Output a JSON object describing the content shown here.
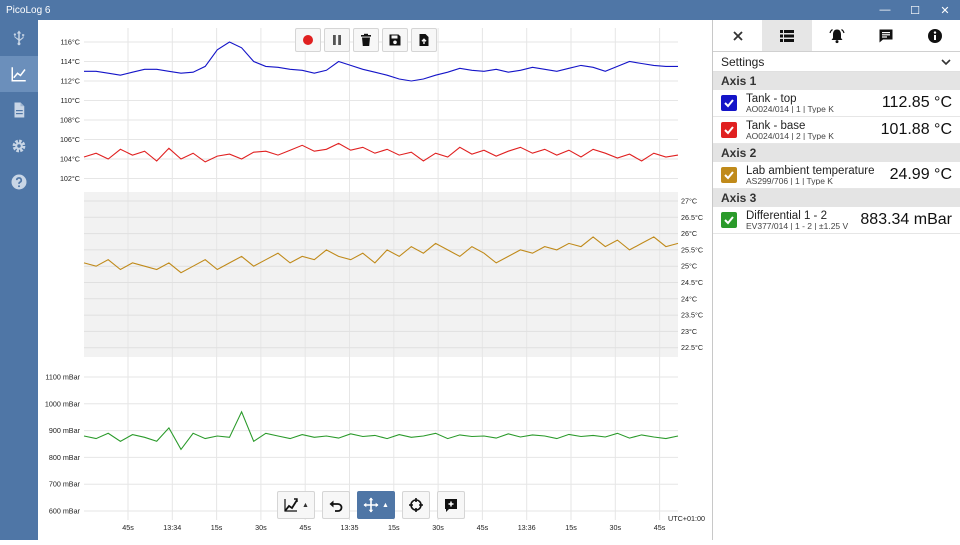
{
  "window": {
    "title": "PicoLog 6",
    "minimize": "—",
    "maximize": "☐",
    "close": "✕"
  },
  "sidebar": {
    "items": [
      {
        "name": "usb-icon",
        "active": false
      },
      {
        "name": "graph-icon",
        "active": true
      },
      {
        "name": "document-icon",
        "active": false
      },
      {
        "name": "gear-icon",
        "active": false
      },
      {
        "name": "help-icon",
        "active": false
      }
    ]
  },
  "toolbar_top": [
    "record-icon",
    "pause-icon",
    "trash-icon",
    "save-icon",
    "export-icon"
  ],
  "toolbar_bottom": [
    "auto-scale-icon",
    "undo-icon",
    "move-icon",
    "crosshair-icon",
    "add-annotation-icon"
  ],
  "panel": {
    "tabs": [
      "close-icon",
      "table-icon",
      "alarm-icon",
      "notes-icon",
      "info-icon"
    ],
    "settings_label": "Settings",
    "axes": [
      {
        "label": "Axis 1",
        "channels": [
          {
            "name": "Tank - top",
            "sub": "AO024/014 | 1 | Type K",
            "value": "112.85 °C",
            "color": "#1414c8"
          },
          {
            "name": "Tank - base",
            "sub": "AO024/014 | 2 | Type K",
            "value": "101.88 °C",
            "color": "#e02020"
          }
        ]
      },
      {
        "label": "Axis 2",
        "channels": [
          {
            "name": "Lab ambient temperature",
            "sub": "AS299/706 | 1 | Type K",
            "value": "24.99 °C",
            "color": "#c08a1a"
          }
        ]
      },
      {
        "label": "Axis 3",
        "channels": [
          {
            "name": "Differential 1 - 2",
            "sub": "EV377/014 | 1 - 2 | ±1.25 V",
            "value": "883.34 mBar",
            "color": "#2a9a2a"
          }
        ]
      }
    ]
  },
  "graph": {
    "timezone": "UTC+01:00",
    "x_ticks": [
      "45s",
      "13:34",
      "15s",
      "30s",
      "45s",
      "13:35",
      "15s",
      "30s",
      "45s",
      "13:36",
      "15s",
      "30s",
      "45s"
    ],
    "axis1_ticks": [
      "116°C",
      "114°C",
      "112°C",
      "110°C",
      "108°C",
      "106°C",
      "104°C",
      "102°C"
    ],
    "axis2_ticks": [
      "27°C",
      "26.5°C",
      "26°C",
      "25.5°C",
      "25°C",
      "24.5°C",
      "24°C",
      "23.5°C",
      "23°C",
      "22.5°C"
    ],
    "axis3_ticks": [
      "1100 mBar",
      "1000 mBar",
      "900 mBar",
      "800 mBar",
      "700 mBar",
      "600 mBar"
    ]
  },
  "chart_data": {
    "type": "line",
    "xlabel": "",
    "x_range": [
      "13:33:40",
      "13:36:50"
    ],
    "series": [
      {
        "name": "Tank - top",
        "axis": 1,
        "color": "#1414c8",
        "ylim": [
          101,
          117
        ],
        "values": [
          113,
          113,
          112.8,
          112.6,
          112.9,
          113.2,
          113.2,
          113.0,
          112.8,
          112.9,
          113.5,
          115.2,
          116.0,
          115.4,
          114.0,
          113.5,
          113.4,
          113.2,
          113.1,
          112.8,
          113.1,
          114.0,
          113.6,
          113.2,
          112.9,
          112.6,
          112.2,
          112.0,
          112.2,
          112.6,
          112.9,
          113.3,
          113.1,
          113.0,
          113.2,
          112.9,
          113.1,
          113.4,
          113.2,
          113.0,
          113.3,
          113.6,
          113.4,
          113.0,
          113.5,
          114.0,
          113.8,
          113.6,
          113.5,
          113.5
        ]
      },
      {
        "name": "Tank - base",
        "axis": 1,
        "color": "#e02020",
        "ylim": [
          101,
          117
        ],
        "values": [
          104.2,
          104.6,
          104.0,
          105.0,
          104.4,
          104.8,
          103.8,
          105.1,
          104.0,
          104.6,
          103.7,
          104.3,
          104.5,
          104.0,
          104.7,
          104.8,
          104.4,
          104.9,
          105.4,
          104.8,
          105.0,
          105.6,
          104.9,
          105.2,
          104.6,
          105.0,
          104.4,
          104.7,
          103.8,
          104.6,
          104.2,
          105.2,
          104.5,
          104.9,
          104.3,
          104.8,
          105.2,
          104.6,
          105.0,
          104.4,
          104.9,
          104.2,
          105.0,
          104.6,
          104.1,
          104.5,
          103.8,
          104.6,
          104.2,
          104.4
        ]
      },
      {
        "name": "Lab ambient temperature",
        "axis": 2,
        "color": "#c08a1a",
        "ylim": [
          22.25,
          27.25
        ],
        "values": [
          25.1,
          25.0,
          25.2,
          24.9,
          25.1,
          25.0,
          24.9,
          25.1,
          24.8,
          25.0,
          25.2,
          24.9,
          25.1,
          25.3,
          25.0,
          25.2,
          25.4,
          25.1,
          25.3,
          25.2,
          25.5,
          25.3,
          25.2,
          25.4,
          25.1,
          25.5,
          25.3,
          25.6,
          25.4,
          25.7,
          25.5,
          25.3,
          25.6,
          25.4,
          25.1,
          25.3,
          25.5,
          25.4,
          25.6,
          25.5,
          25.7,
          25.6,
          25.9,
          25.6,
          25.8,
          25.5,
          25.7,
          25.9,
          25.6,
          25.7
        ]
      },
      {
        "name": "Differential 1 - 2",
        "axis": 3,
        "color": "#2a9a2a",
        "ylim": [
          575,
          1125
        ],
        "values": [
          880,
          870,
          890,
          860,
          885,
          875,
          860,
          910,
          830,
          890,
          870,
          880,
          875,
          970,
          860,
          890,
          880,
          870,
          885,
          875,
          880,
          872,
          888,
          878,
          882,
          870,
          885,
          875,
          880,
          890,
          870,
          884,
          878,
          880,
          872,
          888,
          876,
          884,
          880,
          870,
          886,
          878,
          882,
          876,
          890,
          872,
          884,
          876,
          870,
          880
        ]
      }
    ]
  }
}
